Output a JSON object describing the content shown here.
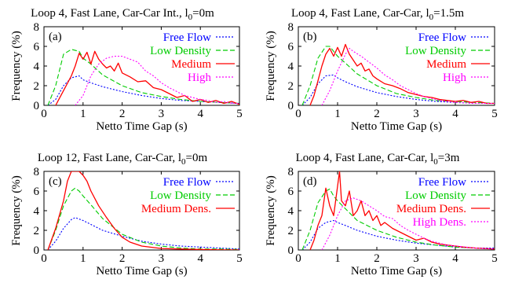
{
  "figure": {
    "x_tick_labels": [
      "0",
      "1",
      "2",
      "3",
      "4",
      "5"
    ],
    "y_tick_labels": [
      "0",
      "2",
      "4",
      "6",
      "8"
    ],
    "colors": {
      "free_flow": "#0000ff",
      "low_density": "#00cc00",
      "medium": "#ff0000",
      "high": "#ff00ff"
    }
  },
  "chart_data": [
    {
      "type": "line",
      "panel": "a",
      "label": "(a)",
      "title": "Loop 4, Fast Lane, Car-Car Int., l",
      "title_subscript": "0",
      "title_suffix": "=0m",
      "xlabel": "Netto Time Gap (s)",
      "ylabel": "Frequency (%)",
      "xlim": [
        0,
        5
      ],
      "ylim": [
        0,
        8
      ],
      "legend_position": "top-right",
      "series": [
        {
          "name": "Free Flow",
          "color": "#0000ff",
          "style": "dotted",
          "x": [
            0.1,
            0.3,
            0.5,
            0.7,
            0.9,
            1.0,
            1.2,
            1.5,
            2.0,
            2.5,
            3.0,
            3.5,
            4.0,
            4.5,
            5.0
          ],
          "y": [
            0,
            0.6,
            2.0,
            2.8,
            3.0,
            2.6,
            2.3,
            1.9,
            1.4,
            1.0,
            0.7,
            0.5,
            0.4,
            0.3,
            0.2
          ]
        },
        {
          "name": "Low Density",
          "color": "#00cc00",
          "style": "dashed",
          "x": [
            0.1,
            0.3,
            0.5,
            0.7,
            0.9,
            1.0,
            1.2,
            1.5,
            2.0,
            2.5,
            3.0,
            3.5,
            4.0,
            4.5,
            5.0
          ],
          "y": [
            0,
            2.0,
            5.2,
            5.7,
            5.5,
            4.8,
            4.2,
            3.1,
            2.0,
            1.3,
            0.9,
            0.6,
            0.4,
            0.3,
            0.2
          ]
        },
        {
          "name": "Medium",
          "color": "#ff0000",
          "style": "solid",
          "x": [
            0.3,
            0.5,
            0.7,
            0.8,
            0.9,
            1.0,
            1.1,
            1.2,
            1.3,
            1.4,
            1.5,
            1.6,
            1.7,
            1.8,
            1.9,
            2.0,
            2.2,
            2.4,
            2.6,
            2.8,
            3.0,
            3.2,
            3.4,
            3.6,
            3.8,
            4.0,
            4.2,
            4.4,
            4.6,
            4.8,
            5.0
          ],
          "y": [
            0,
            1.5,
            3.0,
            4.0,
            5.3,
            4.7,
            5.4,
            4.2,
            5.5,
            4.7,
            4.2,
            3.8,
            4.0,
            3.5,
            4.3,
            3.3,
            2.9,
            2.4,
            2.5,
            1.8,
            1.6,
            1.2,
            0.8,
            1.0,
            0.4,
            0.6,
            0.3,
            0.5,
            0.2,
            0.4,
            0.1
          ]
        },
        {
          "name": "High",
          "color": "#ff00ff",
          "style": "dotted",
          "x": [
            0.8,
            1.0,
            1.2,
            1.4,
            1.6,
            1.8,
            2.0,
            2.2,
            2.4,
            2.6,
            2.8,
            3.0,
            3.2,
            3.4,
            3.6,
            3.8,
            4.0,
            4.2,
            4.4,
            4.6,
            4.8,
            5.0
          ],
          "y": [
            0,
            1.0,
            3.0,
            4.2,
            4.8,
            5.0,
            5.0,
            4.7,
            4.4,
            3.5,
            3.0,
            2.3,
            1.8,
            1.4,
            1.0,
            0.8,
            0.6,
            0.5,
            0.3,
            0.4,
            0.2,
            0.2
          ]
        }
      ]
    },
    {
      "type": "line",
      "panel": "b",
      "label": "(b)",
      "title": "Loop 4, Fast Lane, Car-Car, l",
      "title_subscript": "0",
      "title_suffix": "=1.5m",
      "xlabel": "Netto Time Gap (s)",
      "ylabel": "Frequency (%)",
      "xlim": [
        0,
        5
      ],
      "ylim": [
        0,
        8
      ],
      "legend_position": "top-right",
      "series": [
        {
          "name": "Free Flow",
          "color": "#0000ff",
          "style": "dotted",
          "x": [
            0.1,
            0.3,
            0.5,
            0.7,
            0.9,
            1.0,
            1.2,
            1.5,
            2.0,
            2.5,
            3.0,
            3.5,
            4.0,
            4.5,
            5.0
          ],
          "y": [
            0,
            0.8,
            2.2,
            3.0,
            3.1,
            2.8,
            2.4,
            1.9,
            1.3,
            0.9,
            0.6,
            0.4,
            0.3,
            0.2,
            0.2
          ]
        },
        {
          "name": "Low Density",
          "color": "#00cc00",
          "style": "dashed",
          "x": [
            0.1,
            0.3,
            0.5,
            0.7,
            0.8,
            0.9,
            1.0,
            1.2,
            1.5,
            2.0,
            2.5,
            3.0,
            3.5,
            4.0,
            4.5,
            5.0
          ],
          "y": [
            0,
            2.0,
            4.8,
            6.0,
            6.0,
            5.5,
            5.0,
            4.3,
            3.2,
            2.0,
            1.2,
            0.8,
            0.5,
            0.4,
            0.3,
            0.2
          ]
        },
        {
          "name": "Medium",
          "color": "#ff0000",
          "style": "solid",
          "x": [
            0.3,
            0.4,
            0.5,
            0.6,
            0.7,
            0.8,
            0.9,
            1.0,
            1.1,
            1.2,
            1.3,
            1.4,
            1.5,
            1.6,
            1.7,
            1.8,
            1.9,
            2.0,
            2.2,
            2.4,
            2.6,
            2.8,
            3.0,
            3.2,
            3.4,
            3.6,
            3.8,
            4.0,
            4.2,
            4.4,
            4.6,
            4.8,
            5.0
          ],
          "y": [
            0,
            1.0,
            2.5,
            4.0,
            5.2,
            5.8,
            5.0,
            5.9,
            5.0,
            6.2,
            5.2,
            4.6,
            4.0,
            4.3,
            3.5,
            3.7,
            3.0,
            2.7,
            2.2,
            2.0,
            1.7,
            1.3,
            1.1,
            0.9,
            0.8,
            0.6,
            0.5,
            0.4,
            0.5,
            0.3,
            0.4,
            0.2,
            0.2
          ]
        },
        {
          "name": "High",
          "color": "#ff00ff",
          "style": "dotted",
          "x": [
            0.6,
            0.8,
            1.0,
            1.2,
            1.3,
            1.4,
            1.6,
            1.8,
            2.0,
            2.2,
            2.4,
            2.6,
            2.8,
            3.0,
            3.2,
            3.4,
            3.6,
            3.8,
            4.0,
            4.5,
            5.0
          ],
          "y": [
            0,
            1.5,
            3.5,
            5.2,
            5.8,
            5.5,
            5.0,
            4.4,
            3.8,
            3.1,
            2.6,
            2.0,
            1.6,
            1.2,
            0.9,
            0.7,
            0.5,
            0.4,
            0.3,
            0.2,
            0.2
          ]
        }
      ]
    },
    {
      "type": "line",
      "panel": "c",
      "label": "(c)",
      "title": "Loop 12, Fast Lane, Car-Car, l",
      "title_subscript": "0",
      "title_suffix": "=0m",
      "xlabel": "Netto Time Gap (s)",
      "ylabel": "Frequency (%)",
      "xlim": [
        0,
        5
      ],
      "ylim": [
        0,
        8
      ],
      "legend_position": "top-right",
      "series": [
        {
          "name": "Free Flow",
          "color": "#0000ff",
          "style": "dotted",
          "x": [
            0.1,
            0.3,
            0.5,
            0.7,
            0.8,
            1.0,
            1.2,
            1.5,
            2.0,
            2.5,
            3.0,
            3.5,
            4.0,
            4.5,
            5.0
          ],
          "y": [
            0,
            0.9,
            2.2,
            3.1,
            3.3,
            3.0,
            2.6,
            2.0,
            1.4,
            0.9,
            0.6,
            0.4,
            0.3,
            0.2,
            0.1
          ]
        },
        {
          "name": "Low Density",
          "color": "#00cc00",
          "style": "dashed",
          "x": [
            0.1,
            0.3,
            0.5,
            0.7,
            0.8,
            0.9,
            1.0,
            1.2,
            1.5,
            2.0,
            2.5,
            3.0,
            3.5,
            4.0,
            4.5,
            5.0
          ],
          "y": [
            0,
            2.0,
            4.5,
            6.0,
            6.3,
            6.0,
            5.5,
            4.6,
            3.2,
            1.6,
            0.8,
            0.4,
            0.2,
            0.1,
            0.1,
            0.05
          ]
        },
        {
          "name": "Medium Dens.",
          "color": "#ff0000",
          "style": "solid",
          "x": [
            0.1,
            0.3,
            0.5,
            0.6,
            0.7,
            0.8,
            0.9,
            1.0,
            1.1,
            1.2,
            1.4,
            1.6,
            1.8,
            2.0,
            2.2,
            2.5,
            3.0,
            3.5,
            4.0,
            4.5,
            5.0
          ],
          "y": [
            0,
            2.2,
            5.0,
            7.0,
            8.0,
            8.0,
            8.0,
            7.6,
            7.0,
            6.0,
            4.5,
            3.3,
            2.2,
            1.3,
            0.8,
            0.4,
            0.15,
            0.1,
            0.05,
            0.02,
            0
          ]
        }
      ]
    },
    {
      "type": "line",
      "panel": "d",
      "label": "(d)",
      "title": "Loop 4, Fast Lane, Car-Car, l",
      "title_subscript": "0",
      "title_suffix": "=3m",
      "xlabel": "Netto Time Gap (s)",
      "ylabel": "Frequency (%)",
      "xlim": [
        0,
        5
      ],
      "ylim": [
        0,
        8
      ],
      "legend_position": "top-right",
      "series": [
        {
          "name": "Free Flow",
          "color": "#0000ff",
          "style": "dotted",
          "x": [
            0.1,
            0.3,
            0.5,
            0.7,
            0.9,
            1.0,
            1.2,
            1.5,
            2.0,
            2.5,
            3.0,
            3.5,
            4.0,
            4.5,
            5.0
          ],
          "y": [
            0,
            0.8,
            2.2,
            2.8,
            3.0,
            2.8,
            2.5,
            2.0,
            1.4,
            1.0,
            0.7,
            0.5,
            0.3,
            0.2,
            0.2
          ]
        },
        {
          "name": "Low Density",
          "color": "#00cc00",
          "style": "dashed",
          "x": [
            0.1,
            0.3,
            0.5,
            0.7,
            0.8,
            0.9,
            1.0,
            1.2,
            1.5,
            2.0,
            2.5,
            3.0,
            3.5,
            4.0,
            4.5,
            5.0
          ],
          "y": [
            0,
            2.0,
            4.8,
            6.0,
            6.2,
            5.5,
            5.0,
            4.2,
            3.0,
            2.0,
            1.3,
            0.8,
            0.5,
            0.3,
            0.2,
            0.1
          ]
        },
        {
          "name": "Medium Dens.",
          "color": "#ff0000",
          "style": "solid",
          "x": [
            0.3,
            0.4,
            0.5,
            0.6,
            0.7,
            0.8,
            0.9,
            1.0,
            1.05,
            1.1,
            1.2,
            1.3,
            1.4,
            1.5,
            1.6,
            1.7,
            1.8,
            1.9,
            2.0,
            2.1,
            2.2,
            2.4,
            2.6,
            2.8,
            3.0,
            3.2,
            3.4,
            3.6,
            3.8,
            4.0,
            4.2,
            4.5,
            5.0
          ],
          "y": [
            0,
            1.0,
            2.5,
            3.5,
            6.3,
            4.5,
            3.5,
            6.5,
            8.0,
            5.0,
            4.5,
            6.0,
            3.5,
            4.0,
            5.0,
            3.5,
            4.0,
            3.0,
            3.5,
            2.5,
            2.8,
            2.2,
            1.8,
            1.4,
            1.0,
            1.2,
            0.8,
            0.6,
            0.5,
            0.4,
            0.3,
            0.2,
            0.1
          ]
        },
        {
          "name": "High Dens.",
          "color": "#ff00ff",
          "style": "dotted",
          "x": [
            0.6,
            0.8,
            1.0,
            1.2,
            1.4,
            1.6,
            1.8,
            2.0,
            2.2,
            2.4,
            2.6,
            2.8,
            3.0,
            3.2,
            3.4,
            3.6,
            3.8,
            4.0,
            4.5,
            5.0
          ],
          "y": [
            0,
            1.5,
            3.5,
            5.0,
            5.3,
            5.0,
            4.5,
            4.0,
            3.4,
            3.2,
            2.5,
            2.0,
            1.6,
            1.2,
            0.9,
            0.7,
            0.5,
            0.4,
            0.2,
            0.1
          ]
        }
      ]
    }
  ]
}
